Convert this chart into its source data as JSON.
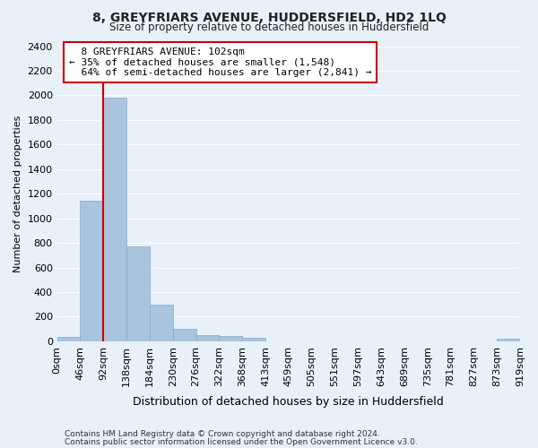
{
  "title": "8, GREYFRIARS AVENUE, HUDDERSFIELD, HD2 1LQ",
  "subtitle": "Size of property relative to detached houses in Huddersfield",
  "xlabel": "Distribution of detached houses by size in Huddersfield",
  "ylabel": "Number of detached properties",
  "footnote1": "Contains HM Land Registry data © Crown copyright and database right 2024.",
  "footnote2": "Contains public sector information licensed under the Open Government Licence v3.0.",
  "bar_values": [
    35,
    1140,
    1980,
    775,
    300,
    100,
    48,
    40,
    25,
    0,
    0,
    0,
    0,
    0,
    0,
    0,
    0,
    0,
    0,
    20
  ],
  "bar_color": "#aac4de",
  "bar_edge_color": "#7aaed0",
  "x_tick_labels": [
    "0sqm",
    "46sqm",
    "92sqm",
    "138sqm",
    "184sqm",
    "230sqm",
    "276sqm",
    "322sqm",
    "368sqm",
    "413sqm",
    "459sqm",
    "505sqm",
    "551sqm",
    "597sqm",
    "643sqm",
    "689sqm",
    "735sqm",
    "781sqm",
    "827sqm",
    "873sqm",
    "919sqm"
  ],
  "ylim": [
    0,
    2400
  ],
  "yticks": [
    0,
    200,
    400,
    600,
    800,
    1000,
    1200,
    1400,
    1600,
    1800,
    2000,
    2200,
    2400
  ],
  "property_line_x": 2,
  "property_size": "102sqm",
  "property_name": "8 GREYFRIARS AVENUE",
  "pct_smaller": 35,
  "n_smaller": 1548,
  "pct_larger_semi": 64,
  "n_larger_semi": 2841,
  "bg_color": "#e8f0f8",
  "grid_color": "#ffffff",
  "line_color": "#cc0000"
}
